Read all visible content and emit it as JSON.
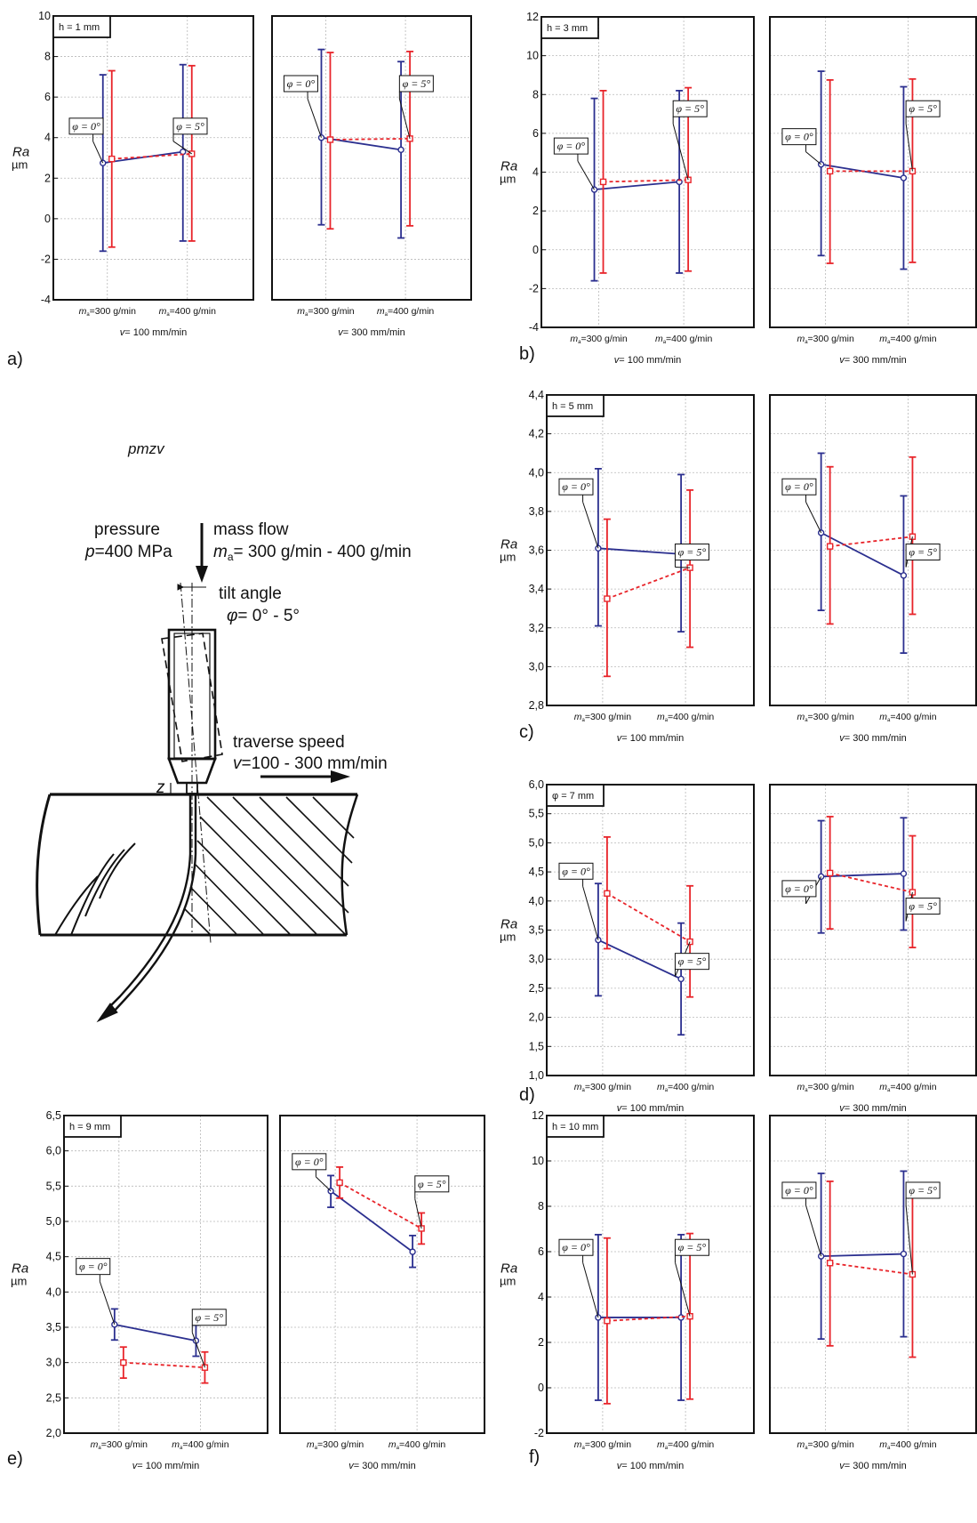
{
  "colors": {
    "blue": "#2b2f8f",
    "red": "#e8242a",
    "grid": "#b8b8b8"
  },
  "chart_data": [
    {
      "id": "a",
      "type": "line",
      "tag": "a)",
      "h_label": "h = 1 mm",
      "ylabel": "Ra",
      "yunit": "µm",
      "ylim": [
        -4,
        10
      ],
      "yticks": [
        -4,
        -2,
        0,
        2,
        4,
        6,
        8,
        10
      ],
      "tick_decimals": 0,
      "categories": [
        "=300 g/min",
        "=400 g/min"
      ],
      "category_symbol": "m",
      "subplots": [
        {
          "xlabel": "v= 100 mm/min",
          "series": [
            {
              "name": "φ = 0°",
              "marker": "circle",
              "mean": [
                2.75,
                3.3
              ],
              "lower": [
                -1.6,
                -1.1
              ],
              "upper": [
                7.1,
                7.6
              ]
            },
            {
              "name": "φ = 5°",
              "marker": "square",
              "mean": [
                2.95,
                3.2
              ],
              "lower": [
                -1.4,
                -1.1
              ],
              "upper": [
                7.3,
                7.55
              ]
            }
          ]
        },
        {
          "xlabel": "v= 300 mm/min",
          "series": [
            {
              "name": "φ = 0°",
              "marker": "circle",
              "mean": [
                4.0,
                3.4
              ],
              "lower": [
                -0.3,
                -0.95
              ],
              "upper": [
                8.35,
                7.75
              ]
            },
            {
              "name": "φ = 5°",
              "marker": "square",
              "mean": [
                3.9,
                3.95
              ],
              "lower": [
                -0.5,
                -0.35
              ],
              "upper": [
                8.2,
                8.25
              ]
            }
          ]
        }
      ]
    },
    {
      "id": "b",
      "type": "line",
      "tag": "b)",
      "h_label": "h = 3 mm",
      "ylabel": "Ra",
      "yunit": "µm",
      "ylim": [
        -4,
        12
      ],
      "yticks": [
        -4,
        -2,
        0,
        2,
        4,
        6,
        8,
        10,
        12
      ],
      "tick_decimals": 0,
      "categories": [
        "=300 g/min",
        "=400 g/min"
      ],
      "category_symbol": "m",
      "subplots": [
        {
          "xlabel": "v= 100 mm/min",
          "series": [
            {
              "name": "φ = 0°",
              "marker": "circle",
              "mean": [
                3.1,
                3.5
              ],
              "lower": [
                -1.6,
                -1.2
              ],
              "upper": [
                7.8,
                8.2
              ]
            },
            {
              "name": "φ = 5°",
              "marker": "square",
              "mean": [
                3.5,
                3.6
              ],
              "lower": [
                -1.2,
                -1.1
              ],
              "upper": [
                8.2,
                8.35
              ]
            }
          ]
        },
        {
          "xlabel": "v= 300 mm/min",
          "series": [
            {
              "name": "φ = 0°",
              "marker": "circle",
              "mean": [
                4.4,
                3.7
              ],
              "lower": [
                -0.3,
                -1.0
              ],
              "upper": [
                9.2,
                8.4
              ]
            },
            {
              "name": "φ = 5°",
              "marker": "square",
              "mean": [
                4.05,
                4.05
              ],
              "lower": [
                -0.7,
                -0.65
              ],
              "upper": [
                8.75,
                8.8
              ]
            }
          ]
        }
      ]
    },
    {
      "id": "c",
      "type": "line",
      "tag": "c)",
      "h_label": "h = 5 mm",
      "ylabel": "Ra",
      "yunit": "µm",
      "ylim": [
        2.8,
        4.4
      ],
      "yticks": [
        2.8,
        3.0,
        3.2,
        3.4,
        3.6,
        3.8,
        4.0,
        4.2,
        4.4
      ],
      "tick_decimals": 1,
      "categories": [
        "=300 g/min",
        "=400 g/min"
      ],
      "category_symbol": "m",
      "subplots": [
        {
          "xlabel": "v= 100 mm/min",
          "series": [
            {
              "name": "φ = 0°",
              "marker": "circle",
              "mean": [
                3.61,
                3.58
              ],
              "lower": [
                3.21,
                3.18
              ],
              "upper": [
                4.02,
                3.99
              ]
            },
            {
              "name": "φ = 5°",
              "marker": "square",
              "mean": [
                3.35,
                3.51
              ],
              "lower": [
                2.95,
                3.1
              ],
              "upper": [
                3.76,
                3.91
              ]
            }
          ]
        },
        {
          "xlabel": "v= 300 mm/min",
          "series": [
            {
              "name": "φ = 0°",
              "marker": "circle",
              "mean": [
                3.69,
                3.47
              ],
              "lower": [
                3.29,
                3.07
              ],
              "upper": [
                4.1,
                3.88
              ]
            },
            {
              "name": "φ = 5°",
              "marker": "square",
              "mean": [
                3.62,
                3.67
              ],
              "lower": [
                3.22,
                3.27
              ],
              "upper": [
                4.03,
                4.08
              ]
            }
          ]
        }
      ]
    },
    {
      "id": "d",
      "type": "line",
      "tag": "d)",
      "h_label": "φ = 7 mm",
      "ylabel": "Ra",
      "yunit": "µm",
      "ylim": [
        1.0,
        6.0
      ],
      "yticks": [
        1.0,
        1.5,
        2.0,
        2.5,
        3.0,
        3.5,
        4.0,
        4.5,
        5.0,
        5.5,
        6.0
      ],
      "tick_decimals": 1,
      "categories": [
        "=300 g/min",
        "=400 g/min"
      ],
      "category_symbol": "m",
      "subplots": [
        {
          "xlabel": "v= 100 mm/min",
          "series": [
            {
              "name": "φ = 0°",
              "marker": "circle",
              "mean": [
                3.33,
                2.66
              ],
              "lower": [
                2.37,
                1.7
              ],
              "upper": [
                4.3,
                3.62
              ]
            },
            {
              "name": "φ = 5°",
              "marker": "square",
              "mean": [
                4.13,
                3.3
              ],
              "lower": [
                3.18,
                2.35
              ],
              "upper": [
                5.1,
                4.26
              ]
            }
          ]
        },
        {
          "xlabel": "v= 300 mm/min",
          "series": [
            {
              "name": "φ = 0°",
              "marker": "circle",
              "mean": [
                4.42,
                4.47
              ],
              "lower": [
                3.45,
                3.5
              ],
              "upper": [
                5.38,
                5.43
              ]
            },
            {
              "name": "φ = 5°",
              "marker": "square",
              "mean": [
                4.48,
                4.15
              ],
              "lower": [
                3.52,
                3.2
              ],
              "upper": [
                5.45,
                5.12
              ]
            }
          ]
        }
      ]
    },
    {
      "id": "e",
      "type": "line",
      "tag": "e)",
      "h_label": "h = 9 mm",
      "ylabel": "Ra",
      "yunit": "µm",
      "ylim": [
        2.0,
        6.5
      ],
      "yticks": [
        2.0,
        2.5,
        3.0,
        3.5,
        4.0,
        4.5,
        5.0,
        5.5,
        6.0,
        6.5
      ],
      "tick_decimals": 1,
      "categories": [
        "=300 g/min",
        "=400 g/min"
      ],
      "category_symbol": "m",
      "subplots": [
        {
          "xlabel": "v= 100 mm/min",
          "series": [
            {
              "name": "φ = 0°",
              "marker": "circle",
              "mean": [
                3.54,
                3.31
              ],
              "lower": [
                3.32,
                3.09
              ],
              "upper": [
                3.76,
                3.53
              ]
            },
            {
              "name": "φ = 5°",
              "marker": "square",
              "mean": [
                3.0,
                2.93
              ],
              "lower": [
                2.78,
                2.71
              ],
              "upper": [
                3.22,
                3.15
              ]
            }
          ]
        },
        {
          "xlabel": "v= 300 mm/min",
          "series": [
            {
              "name": "φ = 0°",
              "marker": "circle",
              "mean": [
                5.43,
                4.57
              ],
              "lower": [
                5.2,
                4.35
              ],
              "upper": [
                5.65,
                4.8
              ]
            },
            {
              "name": "φ = 5°",
              "marker": "square",
              "mean": [
                5.55,
                4.9
              ],
              "lower": [
                5.33,
                4.68
              ],
              "upper": [
                5.77,
                5.12
              ]
            }
          ]
        }
      ]
    },
    {
      "id": "f",
      "type": "line",
      "tag": "f)",
      "h_label": "h = 10 mm",
      "ylabel": "Ra",
      "yunit": "µm",
      "ylim": [
        -2,
        12
      ],
      "yticks": [
        -2,
        0,
        2,
        4,
        6,
        8,
        10,
        12
      ],
      "tick_decimals": 0,
      "categories": [
        "=300 g/min",
        "=400 g/min"
      ],
      "category_symbol": "m",
      "subplots": [
        {
          "xlabel": "v= 100 mm/min",
          "series": [
            {
              "name": "φ = 0°",
              "marker": "circle",
              "mean": [
                3.1,
                3.1
              ],
              "lower": [
                -0.55,
                -0.55
              ],
              "upper": [
                6.75,
                6.75
              ]
            },
            {
              "name": "φ = 5°",
              "marker": "square",
              "mean": [
                2.95,
                3.15
              ],
              "lower": [
                -0.7,
                -0.5
              ],
              "upper": [
                6.6,
                6.8
              ]
            }
          ]
        },
        {
          "xlabel": "v= 300 mm/min",
          "series": [
            {
              "name": "φ = 0°",
              "marker": "circle",
              "mean": [
                5.8,
                5.9
              ],
              "lower": [
                2.15,
                2.25
              ],
              "upper": [
                9.45,
                9.55
              ]
            },
            {
              "name": "φ = 5°",
              "marker": "square",
              "mean": [
                5.5,
                5.0
              ],
              "lower": [
                1.85,
                1.35
              ],
              "upper": [
                9.1,
                8.65
              ]
            }
          ]
        }
      ]
    }
  ],
  "diagram": {
    "caption": "pmzv",
    "pressure_label": "pressure",
    "pressure_value_sym": "p",
    "pressure_value": "=400 MPa",
    "massflow_label": "mass flow",
    "massflow_sym": "m",
    "massflow_sub": "a",
    "massflow_value": "= 300 g/min - 400 g/min",
    "tilt_label": "tilt angle",
    "tilt_sym": "φ",
    "tilt_value": "= 0° - 5°",
    "traverse_label": "traverse speed",
    "traverse_sym": "v",
    "traverse_value": "=100 - 300 mm/min",
    "z_label": "z"
  }
}
